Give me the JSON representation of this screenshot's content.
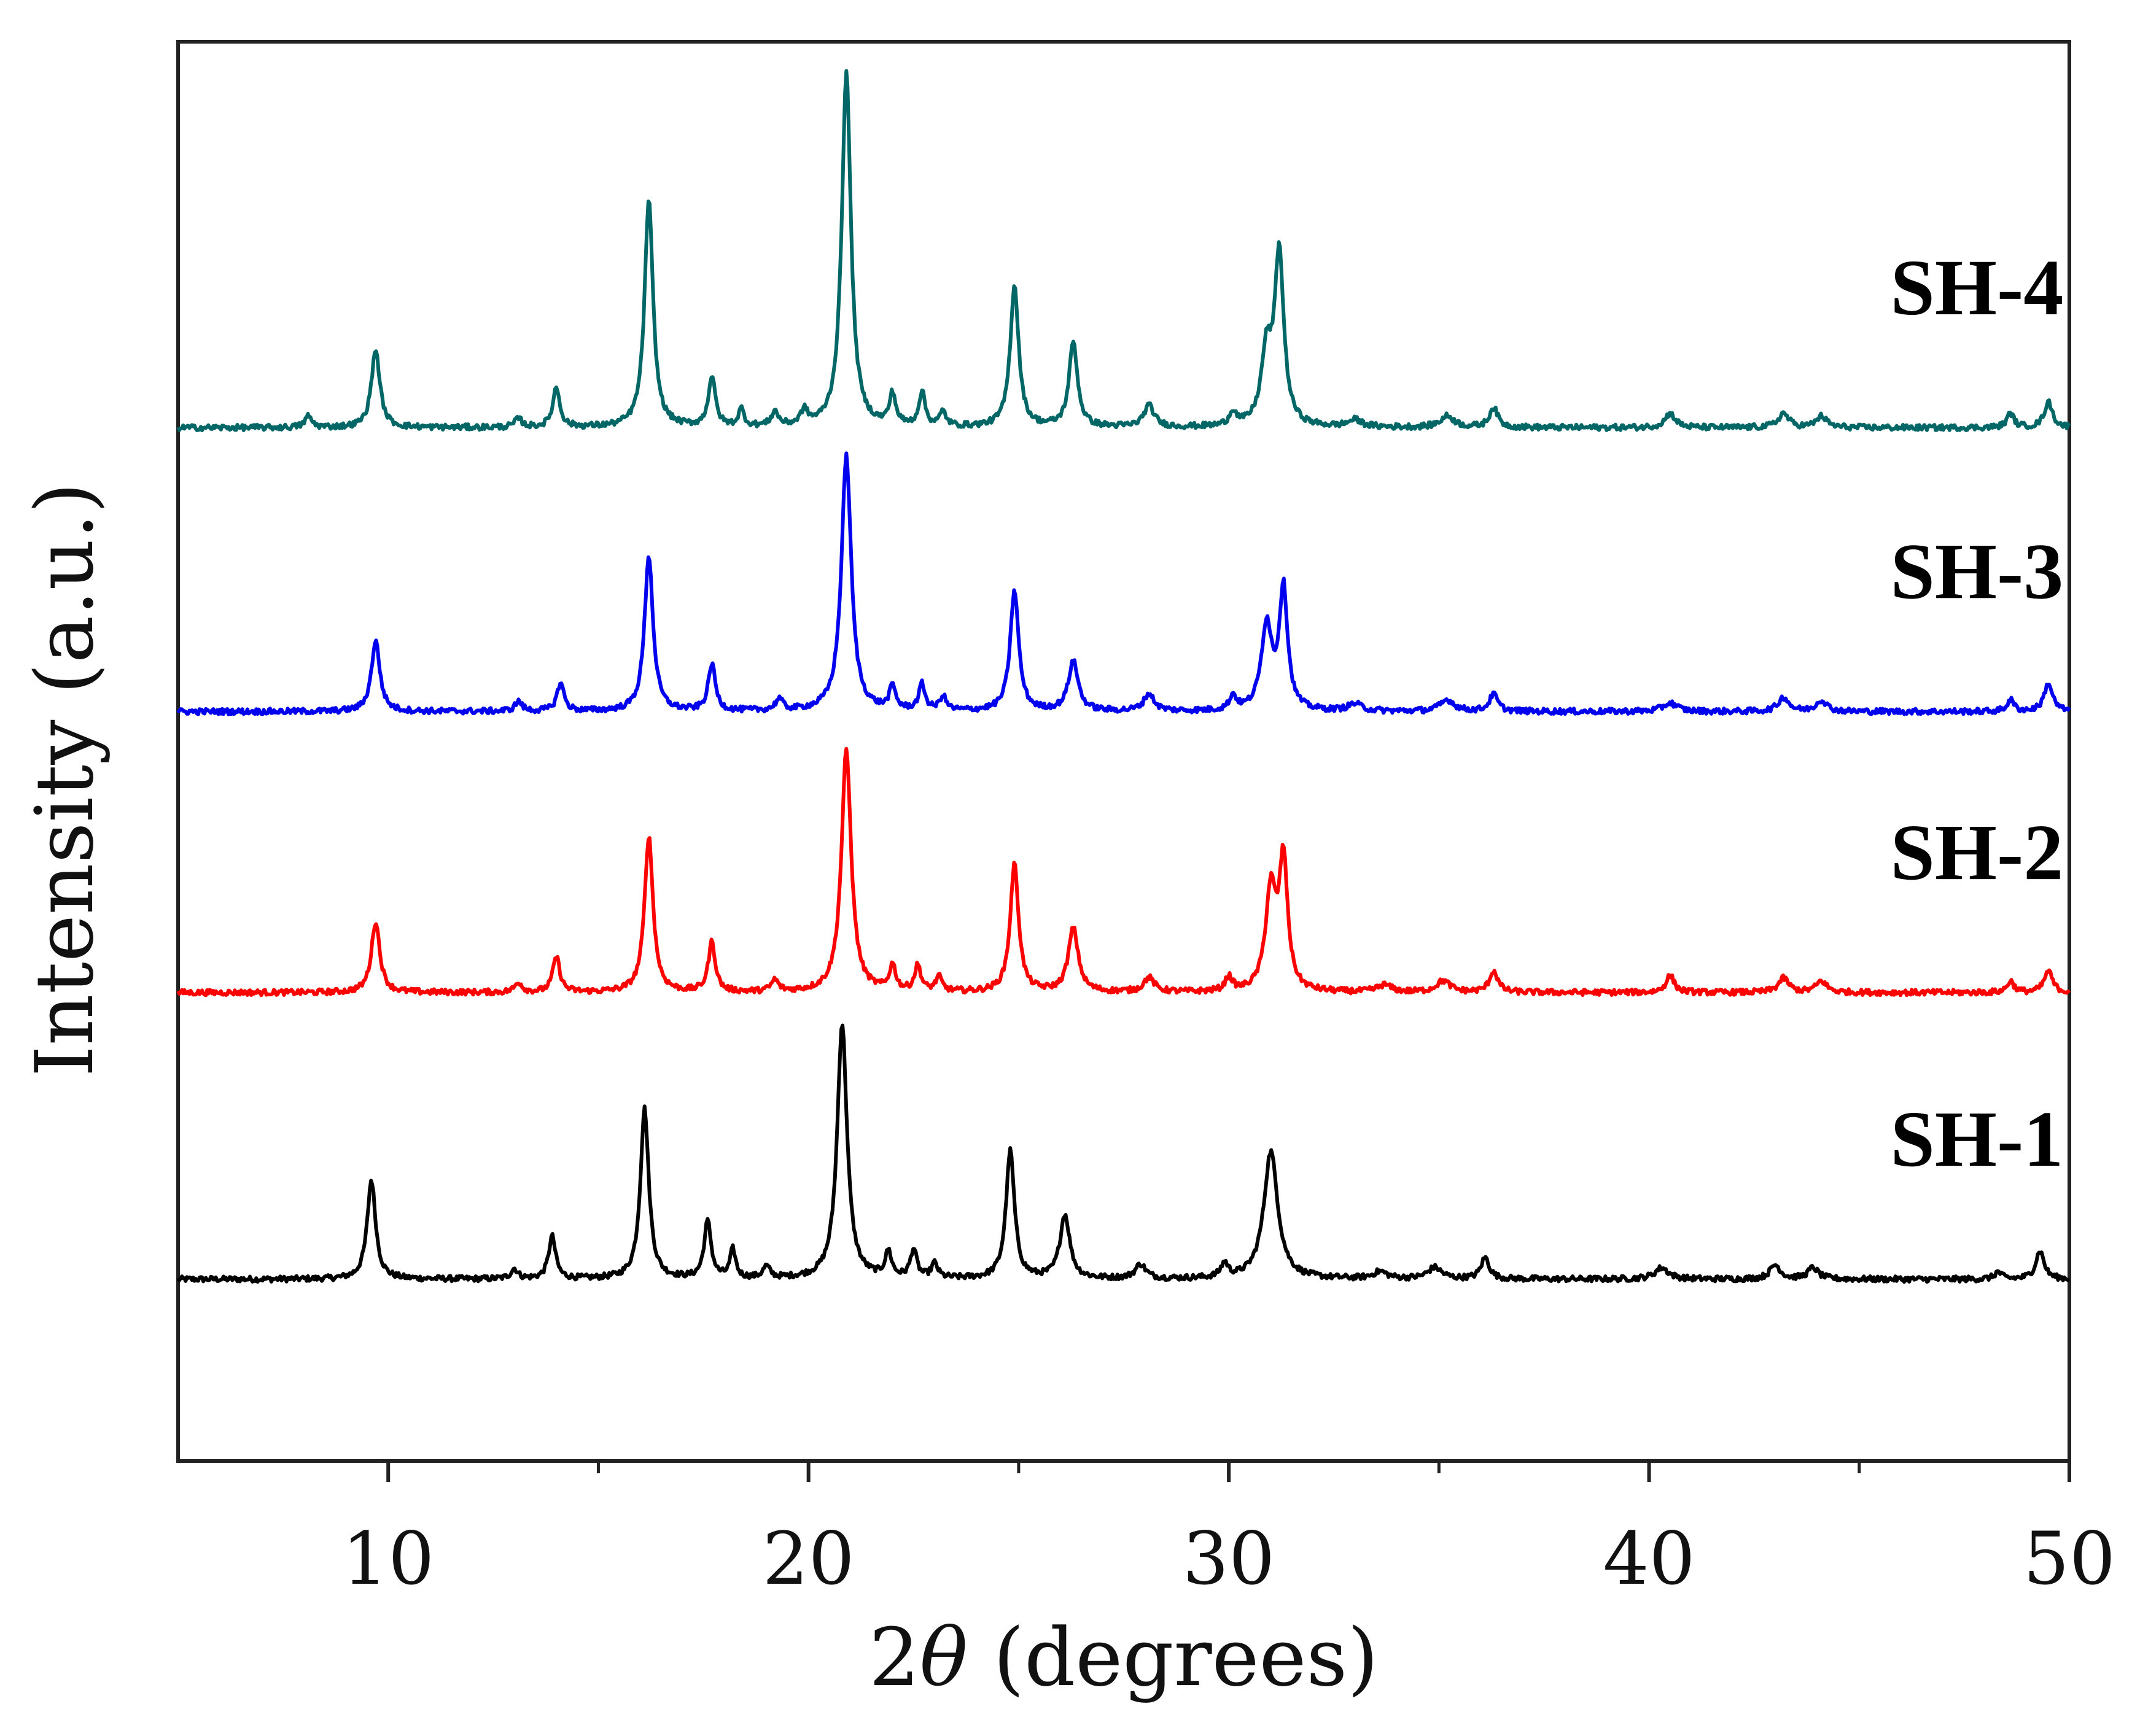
{
  "chart_data": {
    "type": "line",
    "title": "",
    "xlabel_prefix": "2",
    "xlabel_symbol": "θ",
    "xlabel_suffix": " (degrees)",
    "ylabel": "Intensity (a.u.)",
    "xlim": [
      5,
      50
    ],
    "ylim": [
      0,
      1
    ],
    "x_ticks": [
      10,
      20,
      30,
      40,
      50
    ],
    "grid": false,
    "stacked_offset_series": true,
    "series": [
      {
        "name": "SH-1",
        "color": "#000000",
        "baseline": 0.128,
        "peaks": [
          [
            9.6,
            0.07,
            0.12
          ],
          [
            13.0,
            0.007,
            0.1
          ],
          [
            13.9,
            0.03,
            0.1
          ],
          [
            16.1,
            0.12,
            0.12
          ],
          [
            17.6,
            0.04,
            0.1
          ],
          [
            18.2,
            0.02,
            0.08
          ],
          [
            19.0,
            0.008,
            0.1
          ],
          [
            20.8,
            0.18,
            0.14
          ],
          [
            21.9,
            0.018,
            0.09
          ],
          [
            22.5,
            0.02,
            0.09
          ],
          [
            23.0,
            0.01,
            0.09
          ],
          [
            24.8,
            0.09,
            0.12
          ],
          [
            26.1,
            0.045,
            0.14
          ],
          [
            27.9,
            0.01,
            0.15
          ],
          [
            29.9,
            0.01,
            0.1
          ],
          [
            31.0,
            0.09,
            0.2
          ],
          [
            33.6,
            0.005,
            0.2
          ],
          [
            34.9,
            0.008,
            0.2
          ],
          [
            36.1,
            0.015,
            0.12
          ],
          [
            40.3,
            0.008,
            0.2
          ],
          [
            43.0,
            0.01,
            0.15
          ],
          [
            43.9,
            0.008,
            0.15
          ],
          [
            48.3,
            0.005,
            0.1
          ],
          [
            49.3,
            0.02,
            0.12
          ]
        ]
      },
      {
        "name": "SH-2",
        "color": "#ff0000",
        "baseline": 0.33,
        "peaks": [
          [
            9.7,
            0.05,
            0.12
          ],
          [
            13.1,
            0.007,
            0.1
          ],
          [
            14.0,
            0.025,
            0.1
          ],
          [
            16.2,
            0.11,
            0.12
          ],
          [
            17.7,
            0.035,
            0.1
          ],
          [
            19.2,
            0.008,
            0.1
          ],
          [
            20.9,
            0.17,
            0.14
          ],
          [
            22.0,
            0.018,
            0.09
          ],
          [
            22.6,
            0.018,
            0.09
          ],
          [
            23.1,
            0.01,
            0.09
          ],
          [
            24.9,
            0.09,
            0.12
          ],
          [
            26.3,
            0.045,
            0.14
          ],
          [
            28.1,
            0.01,
            0.15
          ],
          [
            30.0,
            0.01,
            0.1
          ],
          [
            31.0,
            0.07,
            0.15
          ],
          [
            31.3,
            0.09,
            0.12
          ],
          [
            33.7,
            0.005,
            0.2
          ],
          [
            35.1,
            0.008,
            0.2
          ],
          [
            36.3,
            0.015,
            0.12
          ],
          [
            40.5,
            0.012,
            0.12
          ],
          [
            43.2,
            0.01,
            0.15
          ],
          [
            44.1,
            0.008,
            0.15
          ],
          [
            48.6,
            0.008,
            0.1
          ],
          [
            49.5,
            0.015,
            0.12
          ]
        ]
      },
      {
        "name": "SH-3",
        "color": "#0000ee",
        "baseline": 0.528,
        "peaks": [
          [
            9.7,
            0.05,
            0.12
          ],
          [
            13.1,
            0.007,
            0.1
          ],
          [
            14.1,
            0.02,
            0.1
          ],
          [
            16.2,
            0.11,
            0.12
          ],
          [
            17.7,
            0.033,
            0.1
          ],
          [
            19.3,
            0.008,
            0.1
          ],
          [
            20.9,
            0.18,
            0.14
          ],
          [
            22.0,
            0.016,
            0.09
          ],
          [
            22.7,
            0.018,
            0.09
          ],
          [
            23.2,
            0.01,
            0.09
          ],
          [
            24.9,
            0.085,
            0.12
          ],
          [
            26.3,
            0.035,
            0.14
          ],
          [
            28.1,
            0.012,
            0.15
          ],
          [
            30.1,
            0.01,
            0.1
          ],
          [
            30.9,
            0.06,
            0.15
          ],
          [
            31.3,
            0.085,
            0.12
          ],
          [
            33.0,
            0.005,
            0.2
          ],
          [
            35.2,
            0.008,
            0.2
          ],
          [
            36.3,
            0.012,
            0.12
          ],
          [
            40.5,
            0.006,
            0.2
          ],
          [
            43.2,
            0.01,
            0.15
          ],
          [
            44.1,
            0.008,
            0.15
          ],
          [
            48.6,
            0.008,
            0.1
          ],
          [
            49.5,
            0.02,
            0.12
          ]
        ]
      },
      {
        "name": "SH-4",
        "color": "#006666",
        "baseline": 0.728,
        "peaks": [
          [
            8.1,
            0.008,
            0.1
          ],
          [
            9.7,
            0.055,
            0.12
          ],
          [
            13.1,
            0.006,
            0.1
          ],
          [
            14.0,
            0.028,
            0.1
          ],
          [
            16.2,
            0.16,
            0.12
          ],
          [
            17.7,
            0.035,
            0.1
          ],
          [
            18.4,
            0.012,
            0.08
          ],
          [
            19.2,
            0.01,
            0.1
          ],
          [
            19.9,
            0.01,
            0.1
          ],
          [
            20.9,
            0.25,
            0.13
          ],
          [
            22.0,
            0.022,
            0.09
          ],
          [
            22.7,
            0.024,
            0.09
          ],
          [
            23.2,
            0.01,
            0.09
          ],
          [
            24.9,
            0.1,
            0.12
          ],
          [
            26.3,
            0.06,
            0.12
          ],
          [
            28.1,
            0.015,
            0.15
          ],
          [
            30.1,
            0.01,
            0.1
          ],
          [
            30.9,
            0.05,
            0.15
          ],
          [
            31.2,
            0.12,
            0.13
          ],
          [
            33.0,
            0.005,
            0.2
          ],
          [
            35.2,
            0.008,
            0.2
          ],
          [
            36.3,
            0.014,
            0.12
          ],
          [
            40.5,
            0.01,
            0.15
          ],
          [
            43.2,
            0.01,
            0.15
          ],
          [
            44.1,
            0.008,
            0.15
          ],
          [
            48.6,
            0.01,
            0.1
          ],
          [
            49.5,
            0.018,
            0.12
          ]
        ]
      }
    ]
  }
}
